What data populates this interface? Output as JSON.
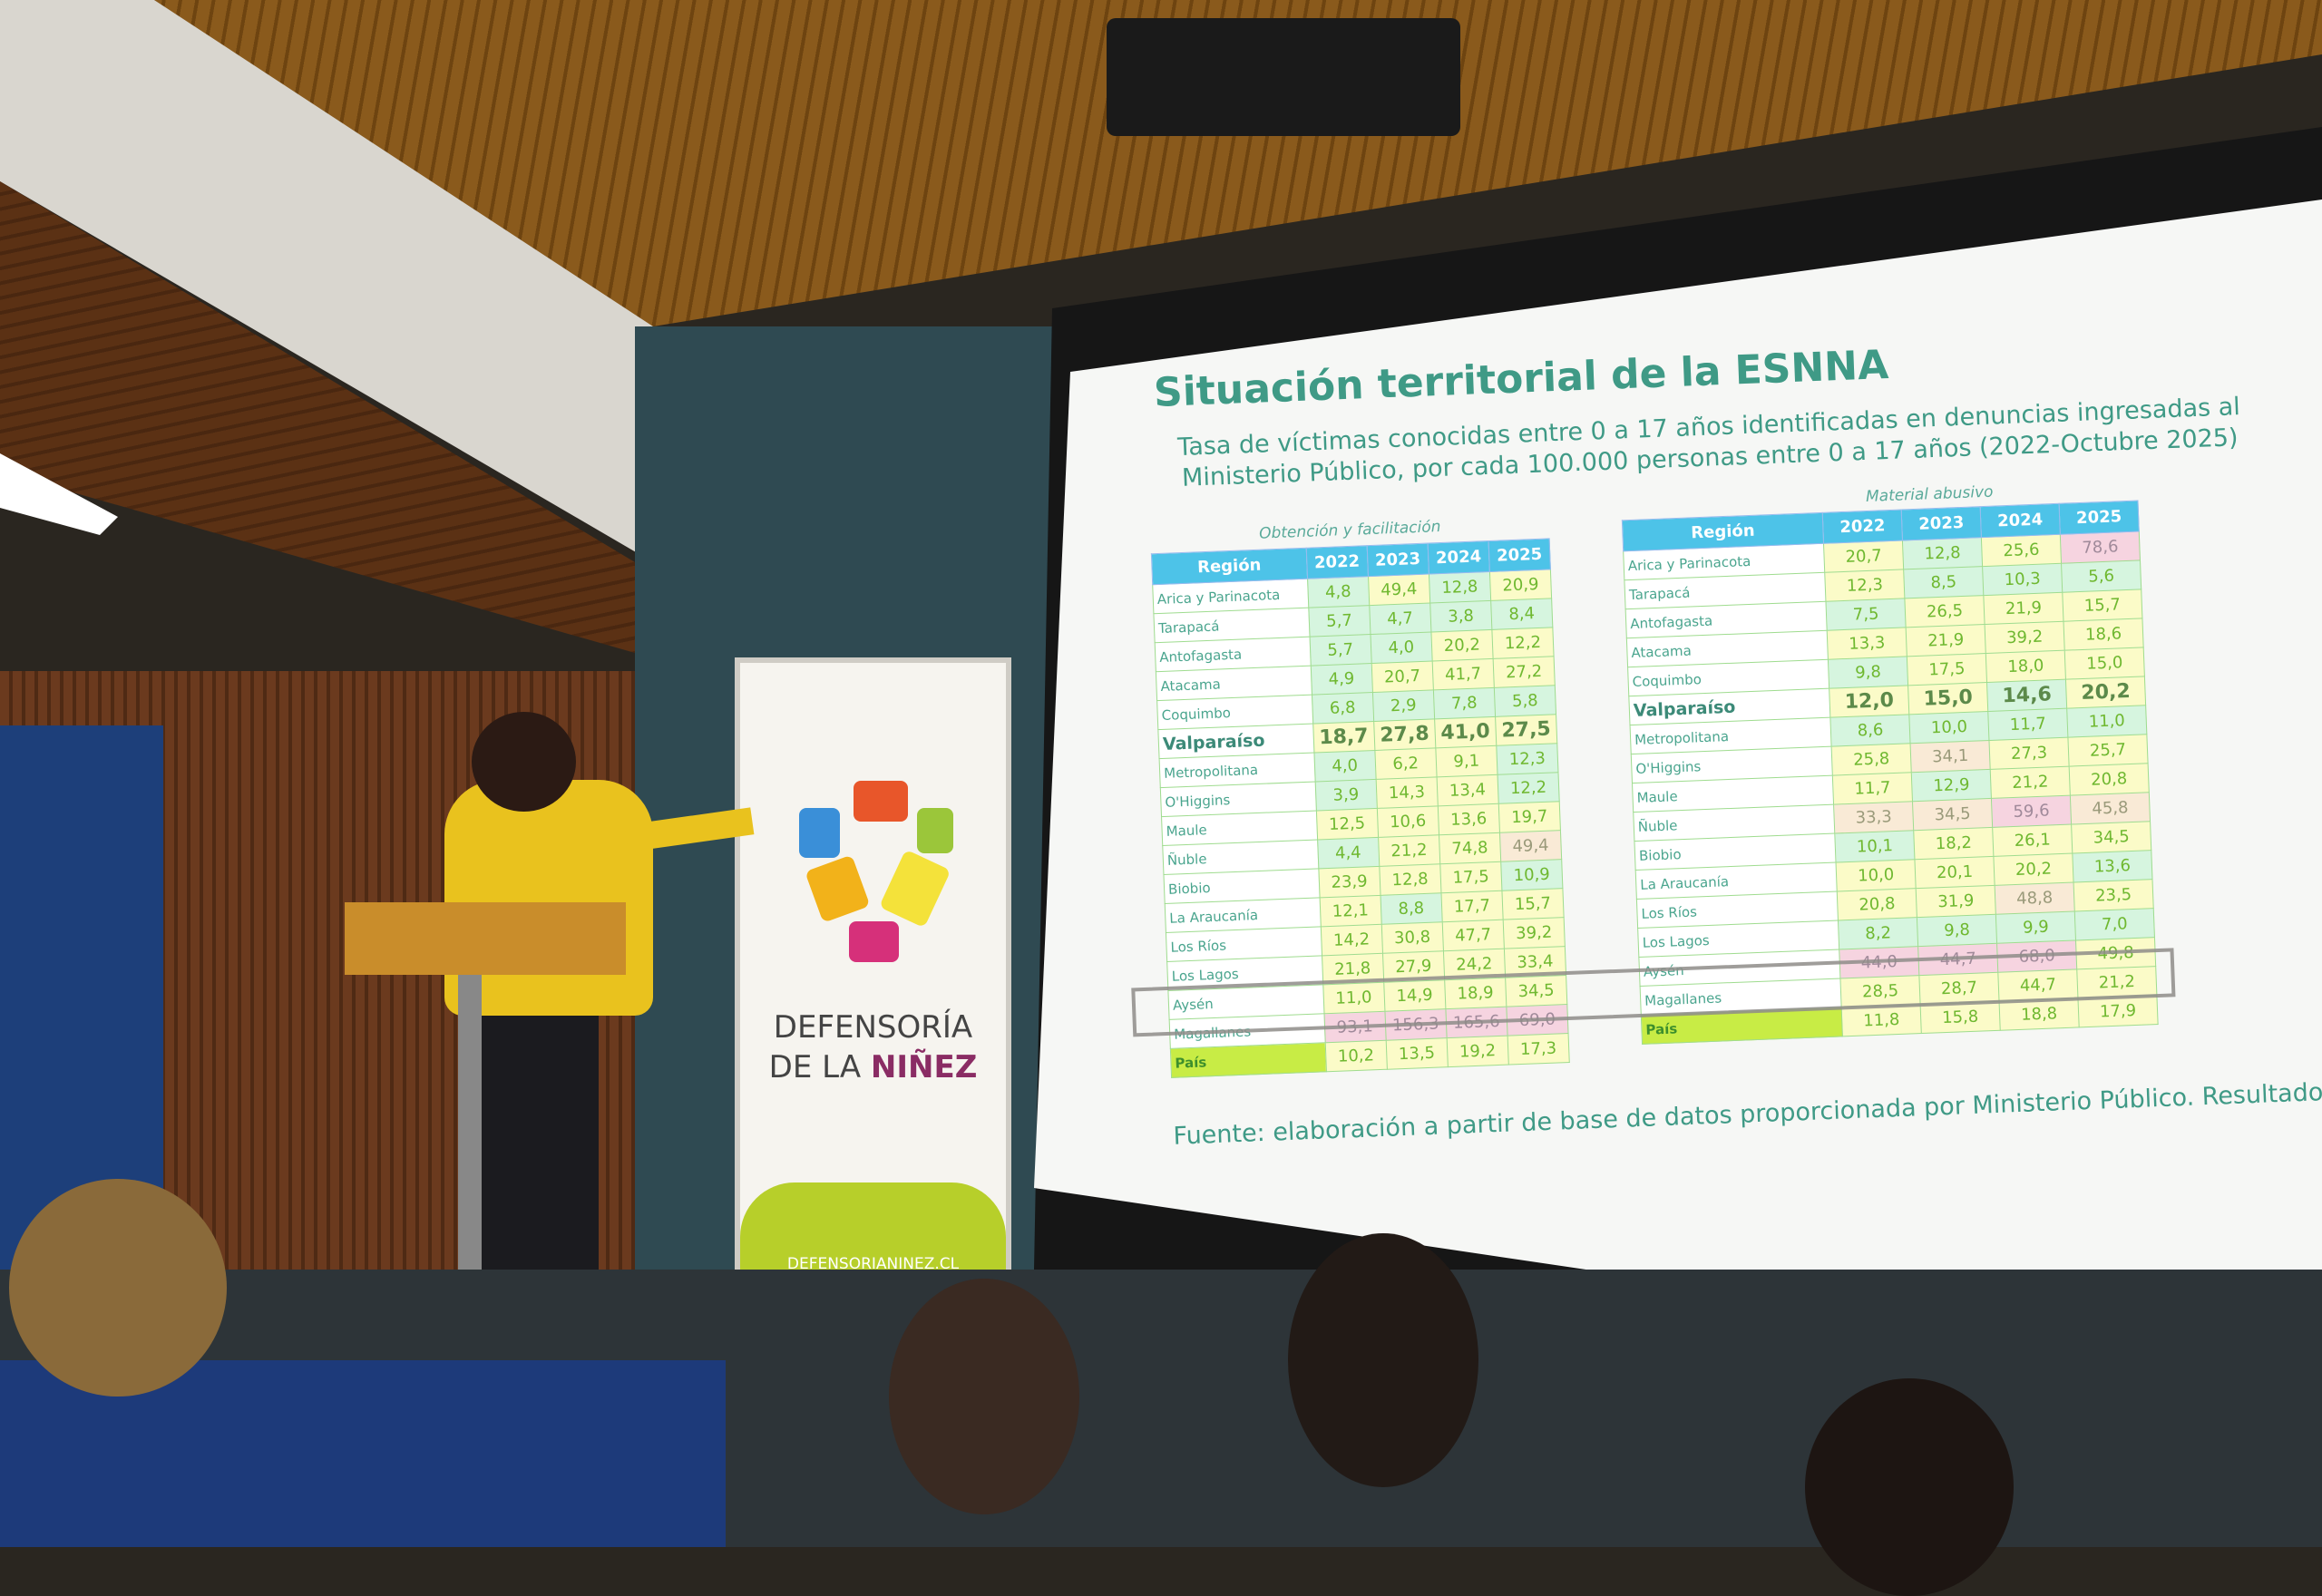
{
  "slide": {
    "title": "Situación territorial de la ESNNA",
    "subtitle": "Tasa de víctimas conocidas entre 0 a 17 años identificadas en denuncias ingresadas al Ministerio Público, por cada 100.000 personas entre 0 a 17 años (2022-Octubre 2025)",
    "source": "Fuente: elaboración a partir de base de datos proporcionada por Ministerio Público. Resultados preliminares",
    "highlighted_region": "Los Lagos",
    "colors": {
      "green": "#d6f5df",
      "yellow": "#fbfbc8",
      "pink": "#f6d4e0",
      "header": "#4dc3e8",
      "title": "#3f9a86"
    },
    "tables": [
      {
        "caption": "Obtención y facilitación",
        "headers": [
          "Región",
          "2022",
          "2023",
          "2024",
          "2025"
        ],
        "rows": [
          {
            "region": "Arica y Parinacota",
            "values": [
              "4,8",
              "49,4",
              "12,8",
              "20,9"
            ],
            "levels": "gygy"
          },
          {
            "region": "Tarapacá",
            "values": [
              "5,7",
              "4,7",
              "3,8",
              "8,4"
            ],
            "levels": "gggg"
          },
          {
            "region": "Antofagasta",
            "values": [
              "5,7",
              "4,0",
              "20,2",
              "12,2"
            ],
            "levels": "ggyy"
          },
          {
            "region": "Atacama",
            "values": [
              "4,9",
              "20,7",
              "41,7",
              "27,2"
            ],
            "levels": "gyyy"
          },
          {
            "region": "Coquimbo",
            "values": [
              "6,8",
              "2,9",
              "7,8",
              "5,8"
            ],
            "levels": "gggg"
          },
          {
            "region": "Valparaíso",
            "values": [
              "18,7",
              "27,8",
              "41,0",
              "27,5"
            ],
            "levels": "yyyy",
            "bold": true
          },
          {
            "region": "Metropolitana",
            "values": [
              "4,0",
              "6,2",
              "9,1",
              "12,3"
            ],
            "levels": "gyyg"
          },
          {
            "region": "O'Higgins",
            "values": [
              "3,9",
              "14,3",
              "13,4",
              "12,2"
            ],
            "levels": "gyyg"
          },
          {
            "region": "Maule",
            "values": [
              "12,5",
              "10,6",
              "13,6",
              "19,7"
            ],
            "levels": "yyyy"
          },
          {
            "region": "Ñuble",
            "values": [
              "4,4",
              "21,2",
              "74,8",
              "49,4"
            ],
            "levels": "gyyo"
          },
          {
            "region": "Biobio",
            "values": [
              "23,9",
              "12,8",
              "17,5",
              "10,9"
            ],
            "levels": "yyyg"
          },
          {
            "region": "La Araucanía",
            "values": [
              "12,1",
              "8,8",
              "17,7",
              "15,7"
            ],
            "levels": "ygyy"
          },
          {
            "region": "Los Ríos",
            "values": [
              "14,2",
              "30,8",
              "47,7",
              "39,2"
            ],
            "levels": "yyyy"
          },
          {
            "region": "Los Lagos",
            "values": [
              "21,8",
              "27,9",
              "24,2",
              "33,4"
            ],
            "levels": "yyyy"
          },
          {
            "region": "Aysén",
            "values": [
              "11,0",
              "14,9",
              "18,9",
              "34,5"
            ],
            "levels": "yyyy"
          },
          {
            "region": "Magallanes",
            "values": [
              "93,1",
              "156,3",
              "165,6",
              "69,0"
            ],
            "levels": "pppp"
          },
          {
            "region": "País",
            "values": [
              "10,2",
              "13,5",
              "19,2",
              "17,3"
            ],
            "levels": "yyyy",
            "total": true
          }
        ]
      },
      {
        "caption": "Material abusivo",
        "headers": [
          "Región",
          "2022",
          "2023",
          "2024",
          "2025"
        ],
        "rows": [
          {
            "region": "Arica y Parinacota",
            "values": [
              "20,7",
              "12,8",
              "25,6",
              "78,6"
            ],
            "levels": "ygyp"
          },
          {
            "region": "Tarapacá",
            "values": [
              "12,3",
              "8,5",
              "10,3",
              "5,6"
            ],
            "levels": "yggg"
          },
          {
            "region": "Antofagasta",
            "values": [
              "7,5",
              "26,5",
              "21,9",
              "15,7"
            ],
            "levels": "gyyy"
          },
          {
            "region": "Atacama",
            "values": [
              "13,3",
              "21,9",
              "39,2",
              "18,6"
            ],
            "levels": "yyyy"
          },
          {
            "region": "Coquimbo",
            "values": [
              "9,8",
              "17,5",
              "18,0",
              "15,0"
            ],
            "levels": "gyyy"
          },
          {
            "region": "Valparaíso",
            "values": [
              "12,0",
              "15,0",
              "14,6",
              "20,2"
            ],
            "levels": "yygy",
            "bold": true
          },
          {
            "region": "Metropolitana",
            "values": [
              "8,6",
              "10,0",
              "11,7",
              "11,0"
            ],
            "levels": "gggg"
          },
          {
            "region": "O'Higgins",
            "values": [
              "25,8",
              "34,1",
              "27,3",
              "25,7"
            ],
            "levels": "yoyy"
          },
          {
            "region": "Maule",
            "values": [
              "11,7",
              "12,9",
              "21,2",
              "20,8"
            ],
            "levels": "ygyy"
          },
          {
            "region": "Ñuble",
            "values": [
              "33,3",
              "34,5",
              "59,6",
              "45,8"
            ],
            "levels": "oopo"
          },
          {
            "region": "Biobio",
            "values": [
              "10,1",
              "18,2",
              "26,1",
              "34,5"
            ],
            "levels": "gyyy"
          },
          {
            "region": "La Araucanía",
            "values": [
              "10,0",
              "20,1",
              "20,2",
              "13,6"
            ],
            "levels": "yyyg"
          },
          {
            "region": "Los Ríos",
            "values": [
              "20,8",
              "31,9",
              "48,8",
              "23,5"
            ],
            "levels": "yyoy"
          },
          {
            "region": "Los Lagos",
            "values": [
              "8,2",
              "9,8",
              "9,9",
              "7,0"
            ],
            "levels": "gggg"
          },
          {
            "region": "Aysén",
            "values": [
              "44,0",
              "44,7",
              "68,0",
              "49,8"
            ],
            "levels": "pppy"
          },
          {
            "region": "Magallanes",
            "values": [
              "28,5",
              "28,7",
              "44,7",
              "21,2"
            ],
            "levels": "yyyy"
          },
          {
            "region": "País",
            "values": [
              "11,8",
              "15,8",
              "18,8",
              "17,9"
            ],
            "levels": "yyyy",
            "total": true
          }
        ]
      }
    ]
  },
  "banner": {
    "name_line1": "DEFENSORÍA",
    "name_line2_prefix": "DE LA",
    "name_line2_emph": "NIÑEZ",
    "url": "DEFENSORIANINEZ.CL"
  }
}
